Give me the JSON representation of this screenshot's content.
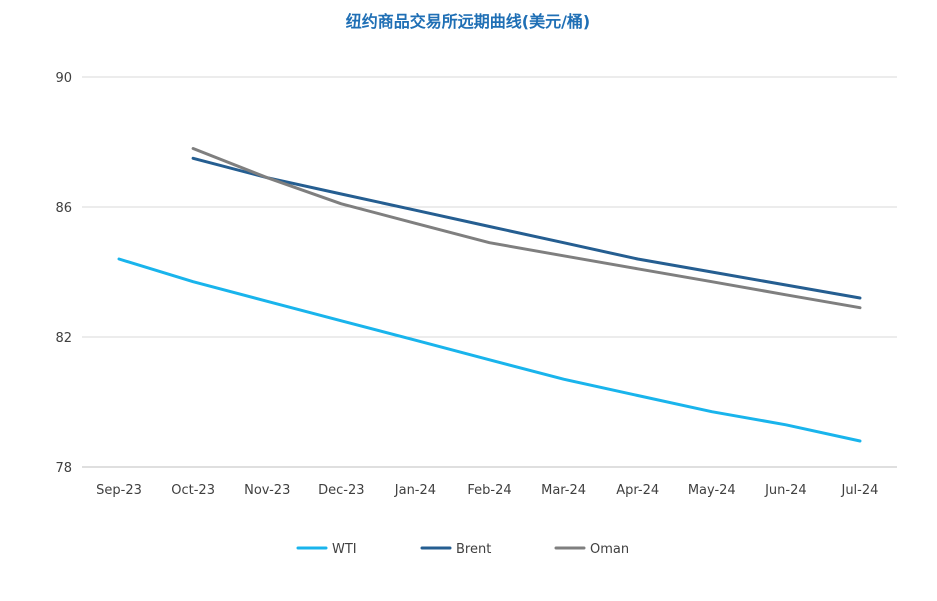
{
  "chart_data": {
    "type": "line",
    "title": "纽约商品交易所远期曲线(美元/桶)",
    "xlabel": "",
    "ylabel": "",
    "categories": [
      "Sep-23",
      "Oct-23",
      "Nov-23",
      "Dec-23",
      "Jan-24",
      "Feb-24",
      "Mar-24",
      "Apr-24",
      "May-24",
      "Jun-24",
      "Jul-24"
    ],
    "ylim": [
      78,
      90
    ],
    "yticks": [
      78,
      82,
      86,
      90
    ],
    "grid": true,
    "legend_position": "bottom",
    "series": [
      {
        "name": "WTI",
        "color": "#19b4ec",
        "values": [
          84.4,
          83.7,
          83.1,
          82.5,
          81.9,
          81.3,
          80.7,
          80.2,
          79.7,
          79.3,
          78.8
        ]
      },
      {
        "name": "Brent",
        "color": "#255e91",
        "values": [
          null,
          87.5,
          86.9,
          86.4,
          85.9,
          85.4,
          84.9,
          84.4,
          84.0,
          83.6,
          83.2
        ]
      },
      {
        "name": "Oman",
        "color": "#7f7f7f",
        "values": [
          null,
          87.8,
          86.9,
          86.1,
          85.5,
          84.9,
          84.5,
          84.1,
          83.7,
          83.3,
          82.9
        ]
      }
    ]
  }
}
